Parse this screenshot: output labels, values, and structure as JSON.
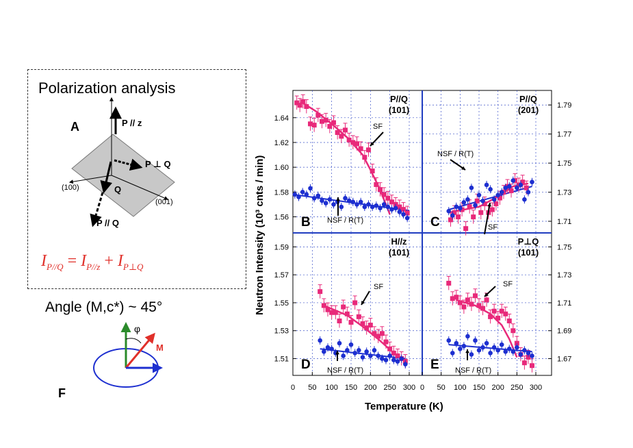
{
  "left": {
    "box_title": "Polarization analysis",
    "label_A": "A",
    "p_par_z": "P // z",
    "p_perp_q": "P ⊥ Q",
    "q": "Q",
    "p_par_q": "P // Q",
    "axis_100": "(100)",
    "axis_001": "(001)",
    "eq_lhs": "I",
    "eq_lhs_sub": "P//Q",
    "eq_eq": "=",
    "eq_t1": "I",
    "eq_t1_sub": "P//z",
    "eq_plus": "+",
    "eq_t2": "I",
    "eq_t2_sub": "P⊥Q",
    "angle_text": "Angle (M,c*) ~ 45°",
    "label_F": "F",
    "phi": "φ",
    "m_label": "M"
  },
  "colors": {
    "pink": "#e8297a",
    "blue": "#1d2fd0",
    "red": "#e0302a",
    "green": "#2a8a2a",
    "grid": "#3a50c8"
  },
  "chart_data": {
    "type": "scatter",
    "xlabel": "Temperature (K)",
    "ylabel": "Neutron Intensity (10³ cnts / min)",
    "xticks": [
      "0",
      "50",
      "100",
      "150",
      "200",
      "250",
      "300"
    ],
    "x_range": [
      0,
      320
    ],
    "panels": [
      {
        "id": "B",
        "letter": "B",
        "title1": "P//Q",
        "title2": "(101)",
        "y_range": [
          1.547,
          1.662
        ],
        "yticks": [
          1.56,
          1.58,
          1.6,
          1.62,
          1.64
        ],
        "ytick_labels": [
          "1.56",
          "1.58",
          "1.60",
          "1.62",
          "1.64"
        ],
        "sf_label": "SF",
        "nsf_label": "NSF / R(T)",
        "sf": {
          "x": [
            10,
            18,
            26,
            35,
            45,
            55,
            65,
            75,
            85,
            95,
            105,
            115,
            125,
            135,
            145,
            155,
            165,
            175,
            185,
            195,
            205,
            215,
            225,
            235,
            245,
            255,
            265,
            275,
            285,
            295
          ],
          "y": [
            1.652,
            1.65,
            1.653,
            1.649,
            1.635,
            1.634,
            1.642,
            1.637,
            1.638,
            1.633,
            1.636,
            1.628,
            1.625,
            1.63,
            1.622,
            1.62,
            1.619,
            1.615,
            1.608,
            1.614,
            1.597,
            1.586,
            1.582,
            1.578,
            1.575,
            1.572,
            1.57,
            1.568,
            1.566,
            1.563
          ]
        },
        "nsf": {
          "x": [
            5,
            15,
            25,
            35,
            45,
            55,
            65,
            75,
            85,
            95,
            105,
            115,
            125,
            135,
            145,
            155,
            165,
            175,
            185,
            195,
            205,
            215,
            225,
            235,
            245,
            255,
            265,
            275,
            285,
            295
          ],
          "y": [
            1.578,
            1.576,
            1.58,
            1.578,
            1.583,
            1.575,
            1.577,
            1.573,
            1.571,
            1.574,
            1.57,
            1.572,
            1.568,
            1.575,
            1.573,
            1.572,
            1.57,
            1.572,
            1.568,
            1.57,
            1.568,
            1.569,
            1.567,
            1.57,
            1.568,
            1.566,
            1.567,
            1.564,
            1.562,
            1.559
          ]
        },
        "sf_fit": {
          "x": [
            20,
            60,
            100,
            140,
            180,
            200,
            220,
            240,
            250
          ],
          "y": [
            1.653,
            1.645,
            1.635,
            1.624,
            1.61,
            1.598,
            1.585,
            1.57,
            1.562
          ]
        },
        "nsf_fit": {
          "x": [
            0,
            300
          ],
          "y": [
            1.578,
            1.565
          ]
        }
      },
      {
        "id": "C",
        "letter": "C",
        "title1": "P//Q",
        "title2": "(201)",
        "y_range": [
          1.702,
          1.8
        ],
        "yticks": [
          1.71,
          1.73,
          1.75,
          1.77,
          1.79
        ],
        "ytick_labels": [
          "1.71",
          "1.73",
          "1.75",
          "1.77",
          "1.79"
        ],
        "sf_label": "SF",
        "nsf_label": "NSF / R(T)",
        "sf": {
          "x": [
            75,
            85,
            95,
            105,
            115,
            125,
            135,
            145,
            155,
            165,
            175,
            185,
            195,
            205,
            215,
            225,
            235,
            245,
            255,
            265,
            275
          ],
          "y": [
            1.711,
            1.716,
            1.713,
            1.718,
            1.705,
            1.72,
            1.713,
            1.724,
            1.716,
            1.722,
            1.716,
            1.718,
            1.722,
            1.726,
            1.73,
            1.734,
            1.731,
            1.738,
            1.735,
            1.737,
            1.733
          ]
        },
        "nsf": {
          "x": [
            70,
            80,
            90,
            100,
            110,
            120,
            130,
            140,
            150,
            160,
            170,
            180,
            190,
            200,
            210,
            220,
            230,
            240,
            250,
            260,
            270,
            280,
            290
          ],
          "y": [
            1.717,
            1.714,
            1.72,
            1.719,
            1.723,
            1.725,
            1.733,
            1.721,
            1.728,
            1.724,
            1.735,
            1.732,
            1.725,
            1.728,
            1.73,
            1.733,
            1.734,
            1.738,
            1.733,
            1.735,
            1.725,
            1.73,
            1.737
          ]
        },
        "sf_fit": {
          "x": [
            70,
            150,
            200,
            240,
            280
          ],
          "y": [
            1.716,
            1.72,
            1.727,
            1.734,
            1.736
          ]
        },
        "nsf_fit": {
          "x": [
            70,
            290
          ],
          "y": [
            1.718,
            1.734
          ]
        }
      },
      {
        "id": "D",
        "letter": "D",
        "title1": "H//z",
        "title2": "(101)",
        "y_range": [
          1.498,
          1.6
        ],
        "yticks": [
          1.51,
          1.53,
          1.55,
          1.57,
          1.59
        ],
        "ytick_labels": [
          "1.51",
          "1.53",
          "1.55",
          "1.57",
          "1.59"
        ],
        "sf_label": "SF",
        "nsf_label": "NSF / R(T)",
        "sf": {
          "x": [
            70,
            80,
            90,
            100,
            110,
            120,
            130,
            140,
            150,
            160,
            170,
            180,
            190,
            200,
            210,
            220,
            230,
            240,
            250,
            260,
            270,
            280,
            290
          ],
          "y": [
            1.558,
            1.548,
            1.545,
            1.543,
            1.543,
            1.537,
            1.547,
            1.542,
            1.536,
            1.55,
            1.54,
            1.535,
            1.532,
            1.534,
            1.528,
            1.526,
            1.528,
            1.522,
            1.517,
            1.514,
            1.512,
            1.51,
            1.508
          ]
        },
        "nsf": {
          "x": [
            70,
            80,
            90,
            100,
            110,
            120,
            130,
            140,
            150,
            160,
            170,
            180,
            190,
            200,
            210,
            220,
            230,
            240,
            250,
            260,
            270,
            280,
            290
          ],
          "y": [
            1.523,
            1.515,
            1.518,
            1.517,
            1.514,
            1.521,
            1.512,
            1.516,
            1.52,
            1.514,
            1.516,
            1.511,
            1.515,
            1.512,
            1.516,
            1.512,
            1.51,
            1.509,
            1.512,
            1.509,
            1.508,
            1.51,
            1.506
          ]
        },
        "sf_fit": {
          "x": [
            80,
            140,
            180,
            220,
            260,
            290
          ],
          "y": [
            1.548,
            1.541,
            1.533,
            1.524,
            1.514,
            1.509
          ]
        },
        "nsf_fit": {
          "x": [
            70,
            290
          ],
          "y": [
            1.517,
            1.51
          ]
        }
      },
      {
        "id": "E",
        "letter": "E",
        "title1": "P⊥Q",
        "title2": "(101)",
        "y_range": [
          1.658,
          1.76
        ],
        "yticks": [
          1.67,
          1.69,
          1.71,
          1.73,
          1.75
        ],
        "ytick_labels": [
          "1.67",
          "1.69",
          "1.71",
          "1.73",
          "1.75"
        ],
        "sf_label": "SF",
        "nsf_label": "NSF / R(T)",
        "sf": {
          "x": [
            70,
            80,
            90,
            100,
            110,
            120,
            130,
            140,
            150,
            160,
            170,
            180,
            190,
            200,
            210,
            220,
            230,
            240,
            250,
            260,
            270,
            280,
            290
          ],
          "y": [
            1.724,
            1.713,
            1.714,
            1.71,
            1.707,
            1.712,
            1.709,
            1.715,
            1.708,
            1.706,
            1.712,
            1.7,
            1.704,
            1.699,
            1.704,
            1.702,
            1.697,
            1.69,
            1.681,
            1.673,
            1.667,
            1.671,
            1.665
          ]
        },
        "nsf": {
          "x": [
            70,
            80,
            90,
            100,
            110,
            120,
            130,
            140,
            150,
            160,
            170,
            180,
            190,
            200,
            210,
            220,
            230,
            240,
            250,
            260,
            270,
            280,
            290
          ],
          "y": [
            1.683,
            1.674,
            1.681,
            1.677,
            1.679,
            1.686,
            1.673,
            1.683,
            1.676,
            1.678,
            1.681,
            1.674,
            1.678,
            1.676,
            1.68,
            1.675,
            1.677,
            1.675,
            1.678,
            1.673,
            1.676,
            1.674,
            1.672
          ]
        },
        "sf_fit": {
          "x": [
            90,
            140,
            180,
            210,
            230,
            250
          ],
          "y": [
            1.712,
            1.708,
            1.702,
            1.694,
            1.684,
            1.671
          ]
        },
        "nsf_fit": {
          "x": [
            70,
            290
          ],
          "y": [
            1.68,
            1.675
          ]
        }
      }
    ]
  }
}
